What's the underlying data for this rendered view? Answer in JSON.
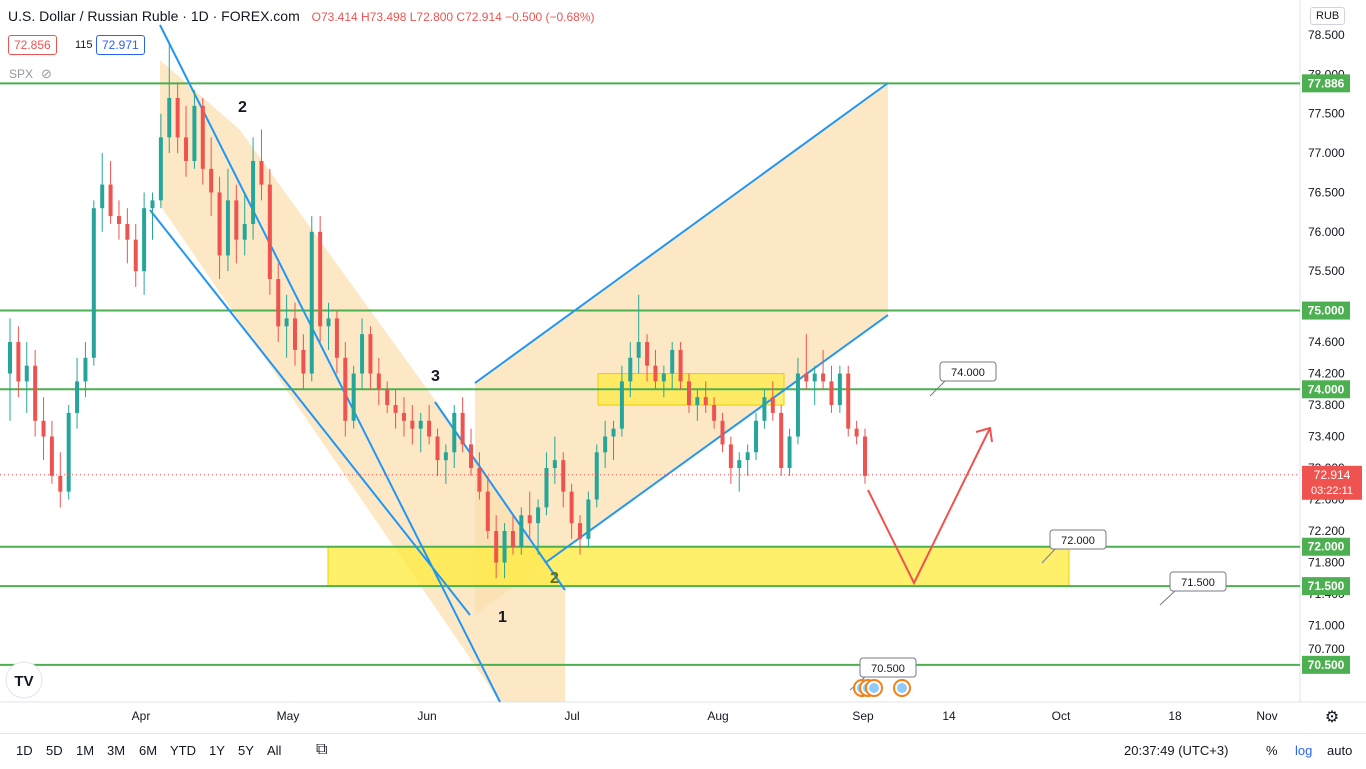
{
  "header": {
    "title": "U.S. Dollar / Russian Ruble · 1D · FOREX.com",
    "ohlc": "O73.414 H73.498 L72.800 C72.914 −0.500 (−0.68%)",
    "bid": "72.856",
    "spread": "115",
    "ask": "72.971",
    "compare_symbol": "SPX",
    "currency_button": "RUB"
  },
  "bottombar": {
    "ranges": [
      "1D",
      "5D",
      "1M",
      "3M",
      "6M",
      "YTD",
      "1Y",
      "5Y",
      "All"
    ],
    "clock": "20:37:49 (UTC+3)",
    "percent": "%",
    "log": "log",
    "auto": "auto"
  },
  "colors": {
    "up": "#26a69a",
    "down": "#ef5350",
    "level": "#4caf50",
    "channel": "#2196f3",
    "zone": "#ffeb3b",
    "fill": "#fbe0b0",
    "arrow": "#ef5350"
  },
  "chart_data": {
    "type": "candlestick",
    "y_ticks": [
      "78.500",
      "78.000",
      "77.500",
      "77.000",
      "76.500",
      "76.000",
      "75.500",
      "75.000",
      "74.600",
      "74.200",
      "73.800",
      "73.400",
      "73.000",
      "72.600",
      "72.200",
      "71.800",
      "71.400",
      "71.000",
      "70.700"
    ],
    "x_ticks": [
      "Apr",
      "May",
      "Jun",
      "Jul",
      "Aug",
      "Sep",
      "14",
      "Oct",
      "18",
      "Nov"
    ],
    "levels": [
      {
        "label": "77.886",
        "value": 77.886
      },
      {
        "label": "75.000",
        "value": 75.0
      },
      {
        "label": "74.000",
        "value": 74.0
      },
      {
        "label": "72.000",
        "value": 72.0
      },
      {
        "label": "71.500",
        "value": 71.5
      },
      {
        "label": "70.500",
        "value": 70.5
      }
    ],
    "current_price": {
      "label": "72.914",
      "value": 72.914,
      "countdown": "03:22:11"
    },
    "callouts": [
      {
        "label": "74.000",
        "value": 74.0
      },
      {
        "label": "72.000",
        "value": 72.0
      },
      {
        "label": "71.500",
        "value": 71.5
      },
      {
        "label": "70.500",
        "value": 70.5
      }
    ],
    "wave_labels": [
      "2",
      "3",
      "2",
      "1"
    ],
    "candles": [
      [
        74.2,
        74.9,
        73.6,
        74.6
      ],
      [
        74.6,
        74.8,
        73.9,
        74.1
      ],
      [
        74.1,
        74.6,
        73.7,
        74.3
      ],
      [
        74.3,
        74.5,
        73.4,
        73.6
      ],
      [
        73.6,
        73.9,
        73.1,
        73.4
      ],
      [
        73.4,
        73.6,
        72.8,
        72.9
      ],
      [
        72.9,
        73.2,
        72.5,
        72.7
      ],
      [
        72.7,
        73.8,
        72.6,
        73.7
      ],
      [
        73.7,
        74.4,
        73.5,
        74.1
      ],
      [
        74.1,
        74.6,
        73.9,
        74.4
      ],
      [
        74.4,
        76.4,
        74.3,
        76.3
      ],
      [
        76.3,
        77.0,
        76.0,
        76.6
      ],
      [
        76.6,
        76.9,
        76.1,
        76.2
      ],
      [
        76.2,
        76.4,
        75.9,
        76.1
      ],
      [
        76.1,
        76.3,
        75.6,
        75.9
      ],
      [
        75.9,
        76.1,
        75.3,
        75.5
      ],
      [
        75.5,
        76.5,
        75.2,
        76.3
      ],
      [
        76.3,
        76.5,
        75.9,
        76.4
      ],
      [
        76.4,
        77.5,
        76.3,
        77.2
      ],
      [
        77.2,
        78.4,
        77.0,
        77.7
      ],
      [
        77.7,
        77.9,
        77.0,
        77.2
      ],
      [
        77.2,
        77.6,
        76.7,
        76.9
      ],
      [
        76.9,
        77.8,
        76.8,
        77.6
      ],
      [
        77.6,
        77.7,
        76.6,
        76.8
      ],
      [
        76.8,
        77.2,
        76.2,
        76.5
      ],
      [
        76.5,
        76.7,
        75.4,
        75.7
      ],
      [
        75.7,
        76.8,
        75.5,
        76.4
      ],
      [
        76.4,
        76.6,
        75.6,
        75.9
      ],
      [
        75.9,
        76.5,
        75.7,
        76.1
      ],
      [
        76.1,
        77.2,
        75.9,
        76.9
      ],
      [
        76.9,
        77.3,
        76.4,
        76.6
      ],
      [
        76.6,
        76.8,
        75.2,
        75.4
      ],
      [
        75.4,
        75.6,
        74.6,
        74.8
      ],
      [
        74.8,
        75.2,
        74.4,
        74.9
      ],
      [
        74.9,
        75.1,
        74.3,
        74.5
      ],
      [
        74.5,
        74.7,
        74.0,
        74.2
      ],
      [
        74.2,
        76.2,
        74.1,
        76.0
      ],
      [
        76.0,
        76.2,
        74.6,
        74.8
      ],
      [
        74.8,
        75.1,
        74.5,
        74.9
      ],
      [
        74.9,
        75.0,
        74.2,
        74.4
      ],
      [
        74.4,
        74.6,
        73.4,
        73.6
      ],
      [
        73.6,
        74.3,
        73.5,
        74.2
      ],
      [
        74.2,
        74.9,
        74.0,
        74.7
      ],
      [
        74.7,
        74.8,
        74.0,
        74.2
      ],
      [
        74.2,
        74.4,
        73.8,
        74.0
      ],
      [
        74.0,
        74.1,
        73.7,
        73.8
      ],
      [
        73.8,
        74.0,
        73.5,
        73.7
      ],
      [
        73.7,
        73.9,
        73.4,
        73.6
      ],
      [
        73.6,
        73.8,
        73.3,
        73.5
      ],
      [
        73.5,
        73.7,
        73.2,
        73.6
      ],
      [
        73.6,
        73.8,
        73.3,
        73.4
      ],
      [
        73.4,
        73.5,
        72.9,
        73.1
      ],
      [
        73.1,
        73.3,
        72.8,
        73.2
      ],
      [
        73.2,
        73.8,
        73.0,
        73.7
      ],
      [
        73.7,
        73.9,
        73.2,
        73.3
      ],
      [
        73.3,
        73.5,
        72.9,
        73.0
      ],
      [
        73.0,
        73.2,
        72.6,
        72.7
      ],
      [
        72.7,
        72.9,
        72.1,
        72.2
      ],
      [
        72.2,
        72.4,
        71.6,
        71.8
      ],
      [
        71.8,
        72.3,
        71.6,
        72.2
      ],
      [
        72.2,
        72.4,
        71.9,
        72.0
      ],
      [
        72.0,
        72.5,
        71.9,
        72.4
      ],
      [
        72.4,
        72.7,
        72.1,
        72.3
      ],
      [
        72.3,
        72.6,
        71.9,
        72.5
      ],
      [
        72.5,
        73.2,
        72.4,
        73.0
      ],
      [
        73.0,
        73.4,
        72.8,
        73.1
      ],
      [
        73.1,
        73.2,
        72.5,
        72.7
      ],
      [
        72.7,
        72.8,
        72.1,
        72.3
      ],
      [
        72.3,
        72.4,
        71.9,
        72.1
      ],
      [
        72.1,
        72.7,
        72.0,
        72.6
      ],
      [
        72.6,
        73.3,
        72.5,
        73.2
      ],
      [
        73.2,
        73.6,
        73.0,
        73.4
      ],
      [
        73.4,
        73.6,
        73.1,
        73.5
      ],
      [
        73.5,
        74.3,
        73.4,
        74.1
      ],
      [
        74.1,
        74.6,
        73.9,
        74.4
      ],
      [
        74.4,
        75.2,
        74.2,
        74.6
      ],
      [
        74.6,
        74.7,
        74.1,
        74.3
      ],
      [
        74.3,
        74.5,
        74.0,
        74.1
      ],
      [
        74.1,
        74.3,
        73.9,
        74.2
      ],
      [
        74.2,
        74.6,
        74.0,
        74.5
      ],
      [
        74.5,
        74.6,
        74.0,
        74.1
      ],
      [
        74.1,
        74.2,
        73.7,
        73.8
      ],
      [
        73.8,
        74.0,
        73.6,
        73.9
      ],
      [
        73.9,
        74.1,
        73.7,
        73.8
      ],
      [
        73.8,
        73.9,
        73.5,
        73.6
      ],
      [
        73.6,
        73.7,
        73.2,
        73.3
      ],
      [
        73.3,
        73.4,
        72.8,
        73.0
      ],
      [
        73.0,
        73.2,
        72.7,
        73.1
      ],
      [
        73.1,
        73.3,
        72.9,
        73.2
      ],
      [
        73.2,
        73.7,
        73.1,
        73.6
      ],
      [
        73.6,
        74.0,
        73.5,
        73.9
      ],
      [
        73.9,
        74.1,
        73.6,
        73.7
      ],
      [
        73.7,
        73.8,
        72.9,
        73.0
      ],
      [
        73.0,
        73.5,
        72.9,
        73.4
      ],
      [
        73.4,
        74.4,
        73.3,
        74.2
      ],
      [
        74.2,
        74.7,
        74.0,
        74.1
      ],
      [
        74.1,
        74.3,
        73.8,
        74.2
      ],
      [
        74.2,
        74.5,
        74.0,
        74.1
      ],
      [
        74.1,
        74.3,
        73.7,
        73.8
      ],
      [
        73.8,
        74.3,
        73.7,
        74.2
      ],
      [
        74.2,
        74.3,
        73.4,
        73.5
      ],
      [
        73.5,
        73.6,
        73.3,
        73.4
      ],
      [
        73.4,
        73.5,
        72.8,
        72.9
      ]
    ]
  }
}
